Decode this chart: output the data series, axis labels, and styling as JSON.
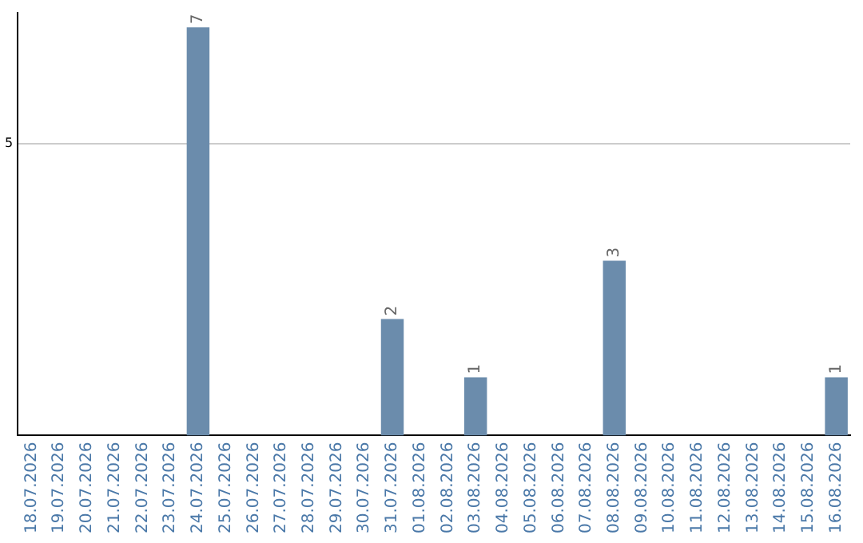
{
  "chart_data": {
    "type": "bar",
    "categories": [
      "18.07.2026",
      "19.07.2026",
      "20.07.2026",
      "21.07.2026",
      "22.07.2026",
      "23.07.2026",
      "24.07.2026",
      "25.07.2026",
      "26.07.2026",
      "27.07.2026",
      "28.07.2026",
      "29.07.2026",
      "30.07.2026",
      "31.07.2026",
      "01.08.2026",
      "02.08.2026",
      "03.08.2026",
      "04.08.2026",
      "05.08.2026",
      "06.08.2026",
      "07.08.2026",
      "08.08.2026",
      "09.08.2026",
      "10.08.2026",
      "11.08.2026",
      "12.08.2026",
      "13.08.2026",
      "14.08.2026",
      "15.08.2026",
      "16.08.2026"
    ],
    "values": [
      0,
      0,
      0,
      0,
      0,
      0,
      7,
      0,
      0,
      0,
      0,
      0,
      0,
      2,
      0,
      0,
      1,
      0,
      0,
      0,
      0,
      3,
      0,
      0,
      0,
      0,
      0,
      0,
      0,
      1
    ],
    "value_labels": [
      null,
      null,
      null,
      null,
      null,
      null,
      "7",
      null,
      null,
      null,
      null,
      null,
      null,
      "2",
      null,
      null,
      "1",
      null,
      null,
      null,
      null,
      "3",
      null,
      null,
      null,
      null,
      null,
      null,
      null,
      "1"
    ],
    "color": "#6b8cac",
    "ylim": [
      0,
      7.25
    ],
    "yticks": [
      5
    ],
    "grid": "y",
    "legend": false
  }
}
